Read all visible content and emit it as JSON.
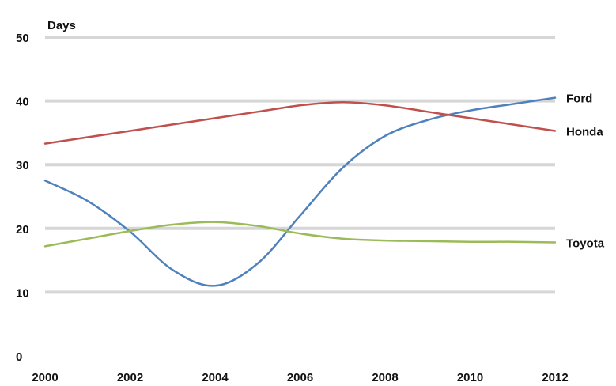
{
  "chart_data": {
    "type": "line",
    "title": "",
    "ylabel": "Days",
    "xlabel": "",
    "x": [
      2000,
      2001,
      2002,
      2003,
      2004,
      2005,
      2006,
      2007,
      2008,
      2009,
      2010,
      2011,
      2012
    ],
    "x_ticks": [
      "2000",
      "2002",
      "2004",
      "2006",
      "2008",
      "2010",
      "2012"
    ],
    "y_ticks": [
      "0",
      "10",
      "20",
      "30",
      "40",
      "50"
    ],
    "ylim": [
      0,
      50
    ],
    "grid": true,
    "legend": "labels at line ends (right)",
    "series": [
      {
        "name": "Ford",
        "color": "#4f81bd",
        "values": [
          27.5,
          24.3,
          19.5,
          13.5,
          11.0,
          14.5,
          22.0,
          29.5,
          34.5,
          37.0,
          38.5,
          39.5,
          40.5
        ]
      },
      {
        "name": "Honda",
        "color": "#c0504d",
        "values": [
          33.3,
          34.3,
          35.3,
          36.3,
          37.3,
          38.3,
          39.3,
          39.8,
          39.3,
          38.3,
          37.3,
          36.3,
          35.3
        ]
      },
      {
        "name": "Toyota",
        "color": "#9bbb59",
        "values": [
          17.2,
          18.4,
          19.6,
          20.6,
          21.0,
          20.4,
          19.2,
          18.4,
          18.1,
          18.0,
          17.9,
          17.9,
          17.8
        ]
      }
    ]
  }
}
